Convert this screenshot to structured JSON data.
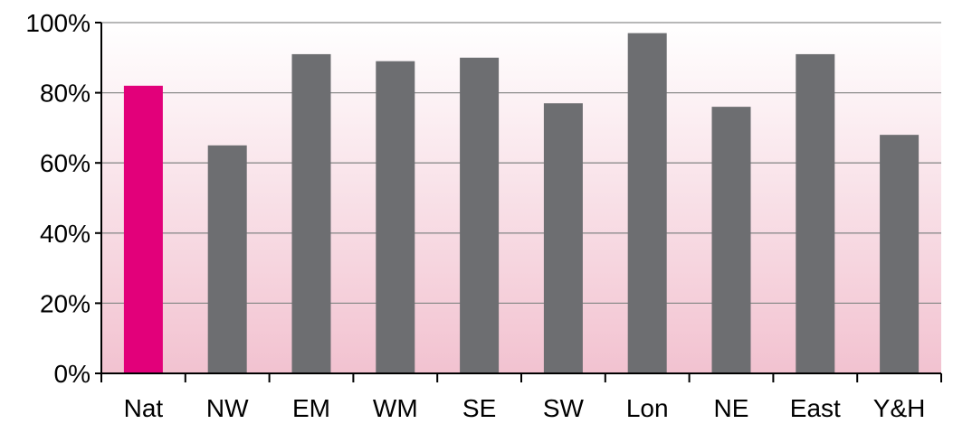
{
  "chart_data": {
    "type": "bar",
    "categories": [
      "Nat",
      "NW",
      "EM",
      "WM",
      "SE",
      "SW",
      "Lon",
      "NE",
      "East",
      "Y&H"
    ],
    "values": [
      82,
      65,
      91,
      89,
      90,
      77,
      97,
      76,
      91,
      68
    ],
    "highlight_index": 0,
    "ylim": [
      0,
      100
    ],
    "yticks": [
      0,
      20,
      40,
      60,
      80,
      100
    ],
    "ytick_labels": [
      "0%",
      "20%",
      "40%",
      "60%",
      "80%",
      "100%"
    ],
    "grid": true,
    "legend": "none",
    "colors": {
      "highlight": "#e2007a",
      "bar": "#6d6e71",
      "background_top": "#ffffff",
      "background_bottom": "#f2c2d0",
      "grid": "#8c8c8c",
      "axis": "#000000"
    }
  }
}
